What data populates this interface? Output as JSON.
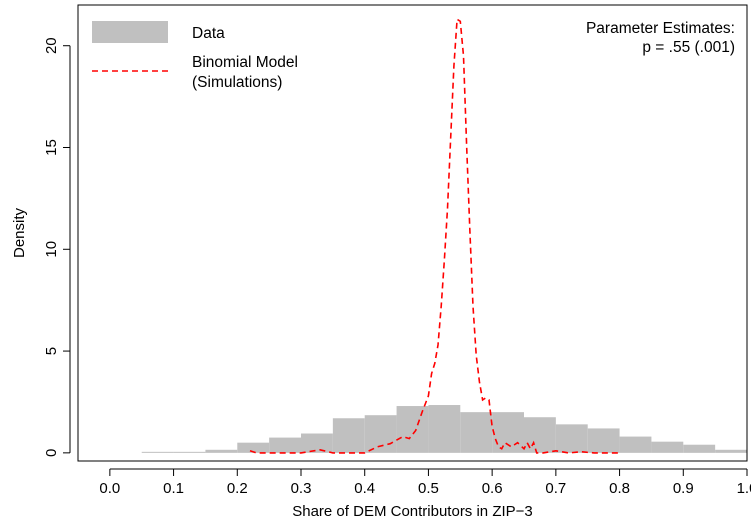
{
  "chart_data": {
    "type": "bar",
    "title": "",
    "xlabel": "Share of DEM Contributors in ZIP−3",
    "ylabel": "Density",
    "xlim": [
      -0.05,
      1.0
    ],
    "ylim": [
      -0.4,
      22.0
    ],
    "x_ticks": [
      0.0,
      0.1,
      0.2,
      0.3,
      0.4,
      0.5,
      0.6,
      0.7,
      0.8,
      0.9,
      1.0
    ],
    "x_tick_labels": [
      "0.0",
      "0.1",
      "0.2",
      "0.3",
      "0.4",
      "0.5",
      "0.6",
      "0.7",
      "0.8",
      "0.9",
      "1.0"
    ],
    "y_ticks": [
      0,
      5,
      10,
      15,
      20
    ],
    "y_tick_labels": [
      "0",
      "5",
      "10",
      "15",
      "20"
    ],
    "grid": false,
    "legend_position": "top-left",
    "colors": {
      "data": "#c0c0c0",
      "model": "#ff0000"
    },
    "series": [
      {
        "name": "Data",
        "kind": "histogram",
        "bins": [
          {
            "x0": 0.05,
            "x1": 0.1,
            "y": 0.05
          },
          {
            "x0": 0.1,
            "x1": 0.15,
            "y": 0.05
          },
          {
            "x0": 0.15,
            "x1": 0.2,
            "y": 0.15
          },
          {
            "x0": 0.2,
            "x1": 0.25,
            "y": 0.5
          },
          {
            "x0": 0.25,
            "x1": 0.3,
            "y": 0.75
          },
          {
            "x0": 0.3,
            "x1": 0.35,
            "y": 0.95
          },
          {
            "x0": 0.35,
            "x1": 0.4,
            "y": 1.7
          },
          {
            "x0": 0.4,
            "x1": 0.45,
            "y": 1.85
          },
          {
            "x0": 0.45,
            "x1": 0.5,
            "y": 2.3
          },
          {
            "x0": 0.5,
            "x1": 0.55,
            "y": 2.35
          },
          {
            "x0": 0.55,
            "x1": 0.6,
            "y": 2.0
          },
          {
            "x0": 0.6,
            "x1": 0.65,
            "y": 2.0
          },
          {
            "x0": 0.65,
            "x1": 0.7,
            "y": 1.75
          },
          {
            "x0": 0.7,
            "x1": 0.75,
            "y": 1.4
          },
          {
            "x0": 0.75,
            "x1": 0.8,
            "y": 1.2
          },
          {
            "x0": 0.8,
            "x1": 0.85,
            "y": 0.8
          },
          {
            "x0": 0.85,
            "x1": 0.9,
            "y": 0.55
          },
          {
            "x0": 0.9,
            "x1": 0.95,
            "y": 0.4
          },
          {
            "x0": 0.95,
            "x1": 1.0,
            "y": 0.15
          }
        ]
      },
      {
        "name": "Binomial Model (Simulations)",
        "kind": "density-line",
        "x": [
          0.22,
          0.23,
          0.25,
          0.3,
          0.33,
          0.35,
          0.4,
          0.42,
          0.44,
          0.46,
          0.47,
          0.48,
          0.49,
          0.5,
          0.505,
          0.51,
          0.515,
          0.52,
          0.525,
          0.53,
          0.535,
          0.54,
          0.545,
          0.55,
          0.555,
          0.56,
          0.565,
          0.57,
          0.575,
          0.58,
          0.585,
          0.59,
          0.595,
          0.6,
          0.605,
          0.61,
          0.615,
          0.62,
          0.63,
          0.64,
          0.65,
          0.655,
          0.66,
          0.665,
          0.67,
          0.68,
          0.7,
          0.72,
          0.74,
          0.76,
          0.8
        ],
        "y": [
          0.1,
          0.0,
          0.0,
          0.0,
          0.15,
          0.0,
          0.0,
          0.3,
          0.45,
          0.8,
          0.7,
          1.1,
          2.0,
          2.8,
          3.9,
          4.4,
          5.3,
          7.2,
          9.5,
          12.0,
          15.5,
          19.0,
          21.3,
          21.2,
          19.5,
          15.0,
          11.0,
          7.2,
          4.8,
          3.5,
          2.6,
          2.7,
          2.6,
          1.3,
          0.7,
          0.3,
          0.2,
          0.5,
          0.3,
          0.5,
          0.2,
          0.5,
          0.2,
          0.5,
          0.0,
          0.0,
          0.1,
          0.0,
          0.05,
          0.0,
          0.0
        ]
      }
    ],
    "legend": {
      "data_label": "Data",
      "model_label_line1": "Binomial Model",
      "model_label_line2": "(Simulations)"
    },
    "annotation": {
      "line1": "Parameter Estimates:",
      "line2": "p = .55 (.001)"
    }
  }
}
